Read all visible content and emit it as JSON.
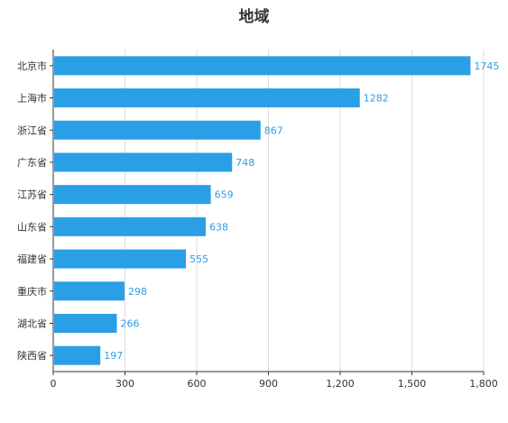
{
  "chart_data": {
    "type": "bar",
    "orientation": "horizontal",
    "title": "地域",
    "xlabel": "",
    "ylabel": "",
    "categories": [
      "北京市",
      "上海市",
      "浙江省",
      "广东省",
      "江苏省",
      "山东省",
      "福建省",
      "重庆市",
      "湖北省",
      "陕西省"
    ],
    "values": [
      1745,
      1282,
      867,
      748,
      659,
      638,
      555,
      298,
      266,
      197
    ],
    "data_labels": [
      "1745",
      "1282",
      "867",
      "748",
      "659",
      "638",
      "555",
      "298",
      "266",
      "197"
    ],
    "xlim": [
      0,
      1800
    ],
    "x_ticks": [
      0,
      300,
      600,
      900,
      1200,
      1500,
      1800
    ],
    "x_tick_labels": [
      "0",
      "300",
      "600",
      "900",
      "1,200",
      "1,500",
      "1,800"
    ],
    "grid": "vertical",
    "bar_color": "#2b9fe6",
    "label_color": "#2b9fe6"
  }
}
